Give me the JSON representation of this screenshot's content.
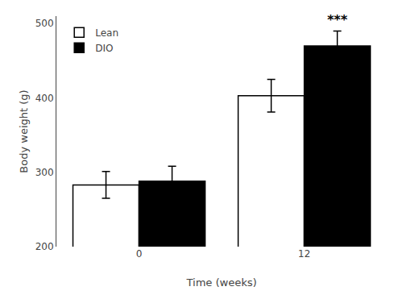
{
  "chart_data": {
    "type": "bar",
    "xlabel": "Time (weeks)",
    "ylabel": "Body weight (g)",
    "categories": [
      "0",
      "12"
    ],
    "series": [
      {
        "name": "Lean",
        "color": "#ffffff",
        "values": [
          283,
          403
        ],
        "errors": [
          18,
          22
        ]
      },
      {
        "name": "DIO",
        "color": "#000000",
        "values": [
          288,
          470
        ],
        "errors": [
          20,
          20
        ]
      }
    ],
    "ylim": [
      200,
      510
    ],
    "yticks": [
      200,
      300,
      400,
      500
    ],
    "grid": false,
    "legend": "upper left",
    "annotations": [
      {
        "text": "***",
        "category": "12",
        "series": "DIO"
      }
    ]
  }
}
